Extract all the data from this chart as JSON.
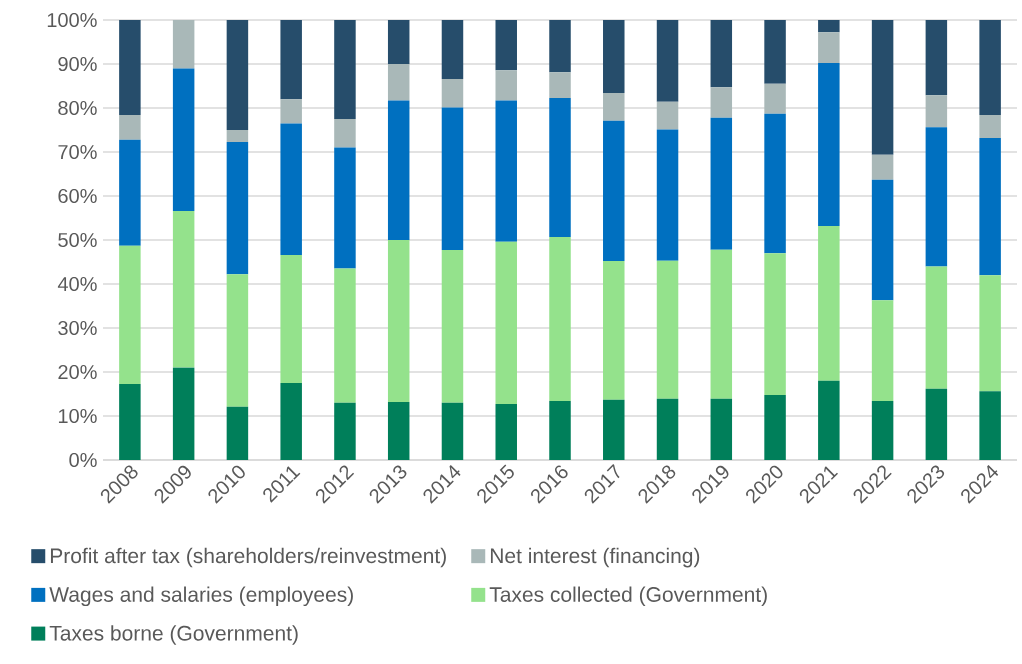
{
  "chart_data": {
    "type": "bar",
    "stacked": true,
    "categories": [
      "2008",
      "2009",
      "2010",
      "2011",
      "2012",
      "2013",
      "2014",
      "2015",
      "2016",
      "2017",
      "2018",
      "2019",
      "2020",
      "2021",
      "2022",
      "2023",
      "2024"
    ],
    "series": [
      {
        "name": "Taxes borne (Government)",
        "color": "#007f5a",
        "values": [
          17.3,
          21,
          12.1,
          17.5,
          13,
          13.2,
          13,
          12.7,
          13.4,
          13.7,
          13.9,
          13.9,
          14.8,
          18,
          13.4,
          16.2,
          15.6
        ]
      },
      {
        "name": "Taxes collected (Government)",
        "color": "#94e28c",
        "values": [
          31.4,
          35.6,
          30.1,
          29.1,
          30.5,
          36.8,
          34.7,
          36.9,
          37.3,
          31.5,
          31.4,
          33.9,
          32.2,
          35.2,
          22.9,
          27.8,
          26.4
        ]
      },
      {
        "name": "Wages and salaries (employees)",
        "color": "#0070c0",
        "values": [
          24.1,
          32.4,
          30.1,
          29.9,
          27.5,
          31.7,
          32.4,
          32.1,
          31.6,
          31.9,
          29.8,
          30,
          31.7,
          37,
          27.4,
          31.6,
          31.2
        ]
      },
      {
        "name": "Net interest (financing)",
        "color": "#a9b8b8",
        "values": [
          5.6,
          11,
          2.7,
          5.5,
          6.5,
          8.3,
          6.5,
          6.9,
          5.8,
          6.3,
          6.3,
          6.9,
          6.8,
          7,
          5.7,
          7.3,
          5.2
        ]
      },
      {
        "name": "Profit after tax (shareholders/reinvestment)",
        "color": "#264d6b",
        "values": [
          21.6,
          0,
          25,
          18,
          22.5,
          10,
          13.4,
          11.4,
          11.9,
          16.6,
          18.6,
          15.3,
          14.5,
          2.8,
          30.6,
          17.1,
          21.6
        ]
      }
    ],
    "ylim": [
      0,
      100
    ],
    "yticks": [
      {
        "value": 0,
        "label": "0%"
      },
      {
        "value": 10,
        "label": "10%"
      },
      {
        "value": 20,
        "label": "20%"
      },
      {
        "value": 30,
        "label": "30%"
      },
      {
        "value": 40,
        "label": "40%"
      },
      {
        "value": 50,
        "label": "50%"
      },
      {
        "value": 60,
        "label": "60%"
      },
      {
        "value": 70,
        "label": "70%"
      },
      {
        "value": 80,
        "label": "80%"
      },
      {
        "value": 90,
        "label": "90%"
      },
      {
        "value": 100,
        "label": "100%"
      }
    ],
    "grid": "y",
    "legend": "bottom"
  }
}
